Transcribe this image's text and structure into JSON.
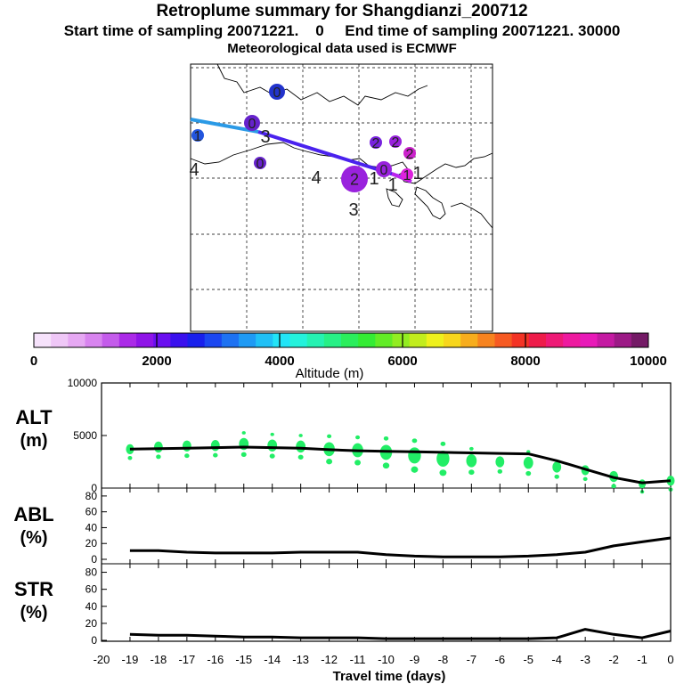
{
  "header": {
    "title": "Retroplume summary for Shangdianzi_200712",
    "subtitle": "Start time of sampling 20071221.    0     End time of sampling 20071221. 30000",
    "met_line": "Meteorological data used is ECMWF"
  },
  "chart_data": {
    "type": "retroplume_summary",
    "map": {
      "cluster_labels": [
        {
          "id": "a",
          "label": "0",
          "color": "#2233cc",
          "size": "medium"
        },
        {
          "id": "b",
          "label": "0",
          "color": "#6622cc",
          "size": "medium"
        },
        {
          "id": "c",
          "label": "3",
          "color": "#222222",
          "size": "text"
        },
        {
          "id": "d",
          "label": "1",
          "color": "#2255dd",
          "size": "small"
        },
        {
          "id": "e",
          "label": "4",
          "color": "#222222",
          "size": "text"
        },
        {
          "id": "f",
          "label": "0",
          "color": "#6622cc",
          "size": "small"
        },
        {
          "id": "g",
          "label": "4",
          "color": "#222222",
          "size": "text"
        },
        {
          "id": "h",
          "label": "2",
          "color": "#9922dd",
          "size": "large"
        },
        {
          "id": "i",
          "label": "3",
          "color": "#222222",
          "size": "text"
        },
        {
          "id": "j",
          "label": "2",
          "color": "#7722dd",
          "size": "small"
        },
        {
          "id": "k",
          "label": "2",
          "color": "#9922dd",
          "size": "small"
        },
        {
          "id": "l",
          "label": "2",
          "color": "#cc22cc",
          "size": "small"
        },
        {
          "id": "m",
          "label": "0",
          "color": "#9922dd",
          "size": "medium"
        },
        {
          "id": "n",
          "label": "1",
          "color": "#9922dd",
          "size": "text"
        },
        {
          "id": "o",
          "label": "1",
          "color": "#dd22dd",
          "size": "small"
        },
        {
          "id": "p",
          "label": "1",
          "color": "#222222",
          "size": "text"
        },
        {
          "id": "q",
          "label": "1",
          "color": "#222222",
          "size": "text"
        }
      ]
    },
    "colorbar": {
      "ticks": [
        0,
        2000,
        4000,
        6000,
        8000,
        10000
      ],
      "label": "Altitude (m)",
      "range": [
        0,
        10000
      ]
    },
    "panels": [
      {
        "id": "alt",
        "label_top": "ALT",
        "label_bottom": "(m)",
        "ylim": [
          0,
          10000
        ],
        "yticks": [
          0,
          5000,
          10000
        ],
        "series_x": [
          -19,
          -18,
          -17,
          -16,
          -15,
          -14,
          -13,
          -12,
          -11,
          -10,
          -9,
          -8,
          -7,
          -6,
          -5,
          -4,
          -3,
          -2,
          -1,
          0
        ],
        "series_y": [
          3700,
          3750,
          3800,
          3850,
          3900,
          3850,
          3800,
          3650,
          3550,
          3500,
          3450,
          3400,
          3350,
          3300,
          3250,
          2600,
          1800,
          1000,
          500,
          700
        ],
        "bubbles": [
          {
            "x": -19,
            "y": 3700,
            "w": 1.0
          },
          {
            "x": -18,
            "y": 3900,
            "w": 1.1
          },
          {
            "x": -17,
            "y": 4000,
            "w": 1.1
          },
          {
            "x": -16,
            "y": 4050,
            "w": 1.1
          },
          {
            "x": -15,
            "y": 4200,
            "w": 1.2
          },
          {
            "x": -14,
            "y": 4050,
            "w": 1.2
          },
          {
            "x": -13,
            "y": 3950,
            "w": 1.2
          },
          {
            "x": -12,
            "y": 3700,
            "w": 1.4
          },
          {
            "x": -11,
            "y": 3600,
            "w": 1.4
          },
          {
            "x": -10,
            "y": 3400,
            "w": 1.5
          },
          {
            "x": -9,
            "y": 3100,
            "w": 1.6
          },
          {
            "x": -8,
            "y": 2800,
            "w": 1.6
          },
          {
            "x": -7,
            "y": 2600,
            "w": 1.3
          },
          {
            "x": -6,
            "y": 2500,
            "w": 1.1
          },
          {
            "x": -5,
            "y": 2400,
            "w": 1.2
          },
          {
            "x": -4,
            "y": 2000,
            "w": 1.1
          },
          {
            "x": -3,
            "y": 1700,
            "w": 1.0
          },
          {
            "x": -2,
            "y": 1100,
            "w": 1.1
          },
          {
            "x": -1,
            "y": 400,
            "w": 0.9
          },
          {
            "x": 0,
            "y": 700,
            "w": 1.0
          }
        ]
      },
      {
        "id": "abl",
        "label_top": "ABL",
        "label_bottom": "(%)",
        "ylim": [
          0,
          90
        ],
        "yticks": [
          0,
          20,
          40,
          60,
          80
        ],
        "series_x": [
          -19,
          -18,
          -17,
          -16,
          -15,
          -14,
          -13,
          -12,
          -11,
          -10,
          -9,
          -8,
          -7,
          -6,
          -5,
          -4,
          -3,
          -2,
          -1,
          0
        ],
        "series_y": [
          11,
          11,
          9,
          8,
          8,
          8,
          9,
          9,
          9,
          6,
          4,
          3,
          3,
          3,
          4,
          6,
          9,
          17,
          22,
          27
        ]
      },
      {
        "id": "str",
        "label_top": "STR",
        "label_bottom": "(%)",
        "ylim": [
          0,
          90
        ],
        "yticks": [
          0,
          20,
          40,
          60,
          80
        ],
        "series_x": [
          -19,
          -18,
          -17,
          -16,
          -15,
          -14,
          -13,
          -12,
          -11,
          -10,
          -9,
          -8,
          -7,
          -6,
          -5,
          -4,
          -3,
          -2,
          -1,
          0
        ],
        "series_y": [
          7,
          6,
          6,
          5,
          4,
          4,
          3,
          3,
          3,
          2,
          2,
          2,
          2,
          2,
          2,
          3,
          13,
          7,
          3,
          11
        ]
      }
    ],
    "xaxis": {
      "xlim": [
        -20,
        0
      ],
      "ticks": [
        -20,
        -19,
        -18,
        -17,
        -16,
        -15,
        -14,
        -13,
        -12,
        -11,
        -10,
        -9,
        -8,
        -7,
        -6,
        -5,
        -4,
        -3,
        -2,
        -1,
        0
      ],
      "tick_labels": [
        "-20",
        "-19",
        "-18",
        "-17",
        "-16",
        "-15",
        "-14",
        "-13",
        "-12",
        "-11",
        "-10",
        "-9",
        "-8",
        "-7",
        "-6",
        "-5",
        "-4",
        "-3",
        "-2",
        "-1",
        "0"
      ],
      "label": "Travel time (days)"
    }
  }
}
